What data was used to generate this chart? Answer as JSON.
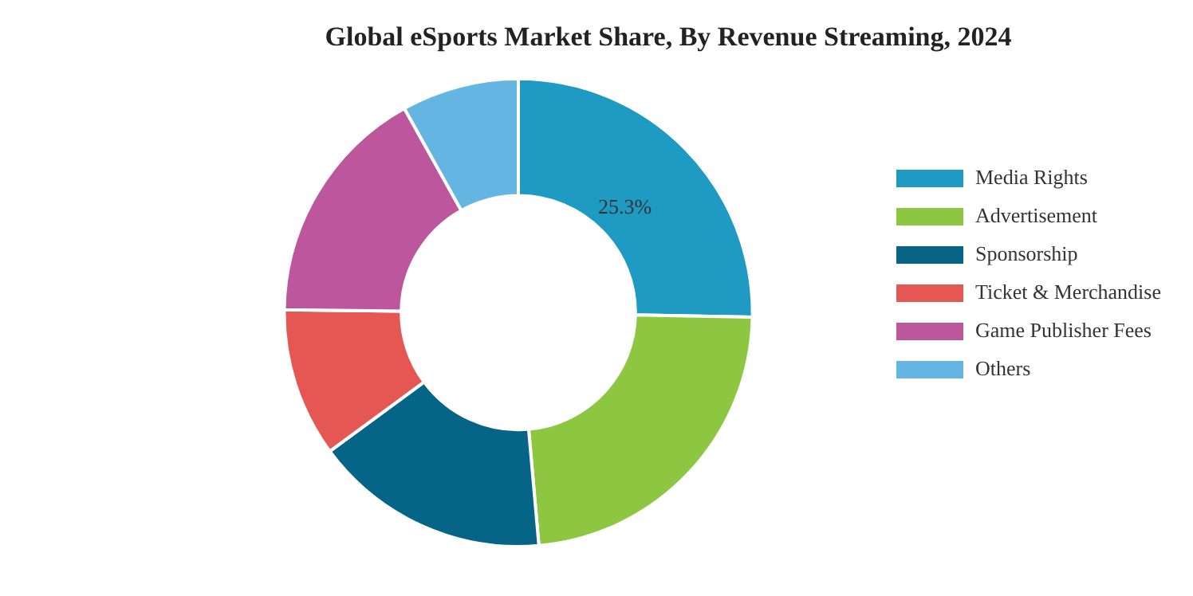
{
  "chart_data": {
    "type": "donut",
    "title": "Global eSports Market Share, By Revenue Streaming, 2024",
    "categories": [
      "Media Rights",
      "Advertisement",
      "Sponsorship",
      "Ticket & Merchandise",
      "Game Publisher Fees",
      "Others"
    ],
    "values": [
      25.3,
      23.3,
      16.3,
      10.3,
      16.7,
      8.1
    ],
    "colors": [
      "#1e9ac3",
      "#8dc641",
      "#066487",
      "#e45753",
      "#bc579d",
      "#65b5e3"
    ],
    "value_labels": [
      "25.3%",
      null,
      null,
      null,
      null,
      null
    ],
    "legend": "right"
  }
}
